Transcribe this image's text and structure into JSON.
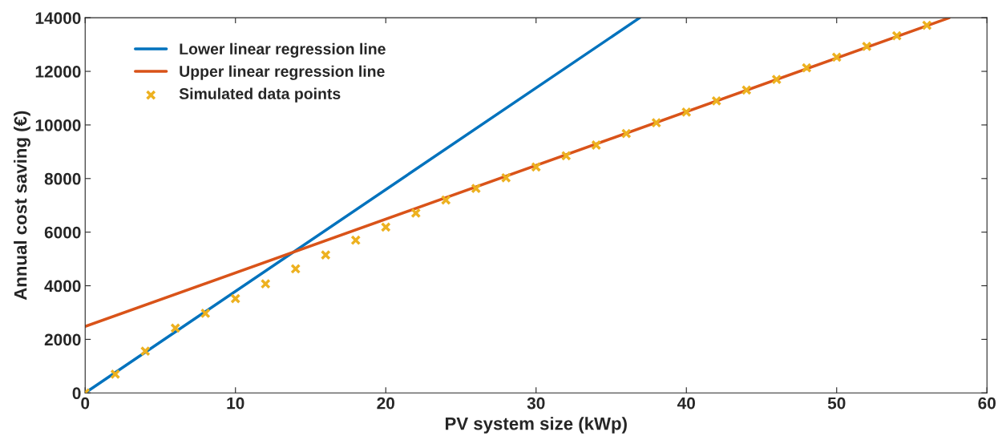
{
  "chart_data": {
    "type": "line",
    "xlabel": "PV system size (kWp)",
    "ylabel": "Annual cost saving (€)",
    "xlim": [
      0,
      60
    ],
    "xticks": [
      0,
      10,
      20,
      30,
      40,
      50,
      60
    ],
    "ylim": [
      0,
      14000
    ],
    "yticks": [
      0,
      2000,
      4000,
      6000,
      8000,
      10000,
      12000,
      14000
    ],
    "grid": false,
    "legend": "top left",
    "series": [
      {
        "name": "Lower linear regression line",
        "color": "#0072bd",
        "x": [
          0,
          36.9
        ],
        "values": [
          0,
          14000
        ],
        "marker": "none",
        "line_style": "solid"
      },
      {
        "name": "Upper linear regression line",
        "color": "#d95319",
        "x": [
          0,
          57.5
        ],
        "values": [
          2480,
          14000
        ],
        "marker": "none",
        "line_style": "solid"
      },
      {
        "name": "Simulated data points",
        "type": "scatter",
        "color": "#edb120",
        "marker": "cross",
        "x": [
          0,
          2,
          4,
          6,
          8,
          10,
          12,
          14,
          16,
          18,
          20,
          22,
          24,
          26,
          28,
          30,
          32,
          34,
          36,
          38,
          40,
          42,
          44,
          46,
          48,
          50,
          52,
          54,
          56
        ],
        "values": [
          0,
          700,
          1560,
          2420,
          2970,
          3520,
          4070,
          4630,
          5150,
          5700,
          6190,
          6710,
          7200,
          7630,
          8030,
          8430,
          8850,
          9250,
          9680,
          10080,
          10480,
          10900,
          11300,
          11700,
          12130,
          12530,
          12930,
          13330,
          13720
        ]
      }
    ]
  }
}
